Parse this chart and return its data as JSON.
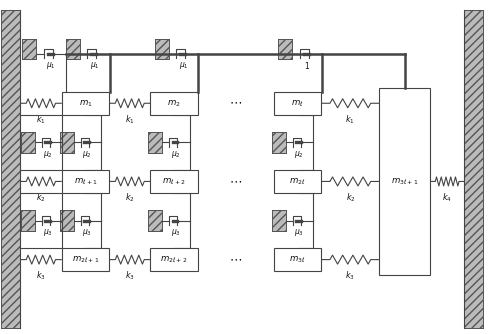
{
  "fig_width": 5.0,
  "fig_height": 3.34,
  "dpi": 100,
  "xlim": [
    0,
    10
  ],
  "ylim": [
    0,
    6.68
  ],
  "wall_color": "#bbbbbb",
  "wall_edge": "#555555",
  "line_color": "#444444",
  "thick_lw": 1.8,
  "thin_lw": 0.8,
  "mass_face": "#ffffff",
  "mass_edge": "#444444",
  "text_color": "#111111",
  "LWx": 0.0,
  "LW": 0.38,
  "RWx": 9.3,
  "RW": 0.38,
  "WY": 0.1,
  "WH": 6.4,
  "R1": 4.62,
  "R2": 3.05,
  "R3": 1.48,
  "MW": 0.95,
  "MH": 0.46,
  "C1": 1.22,
  "C2": 3.0,
  "C3": 5.48,
  "M4x": 7.6,
  "M4w": 1.02,
  "top_wall_y": 6.1,
  "top_wall_h": 0.42,
  "top_wall_w": 0.28
}
